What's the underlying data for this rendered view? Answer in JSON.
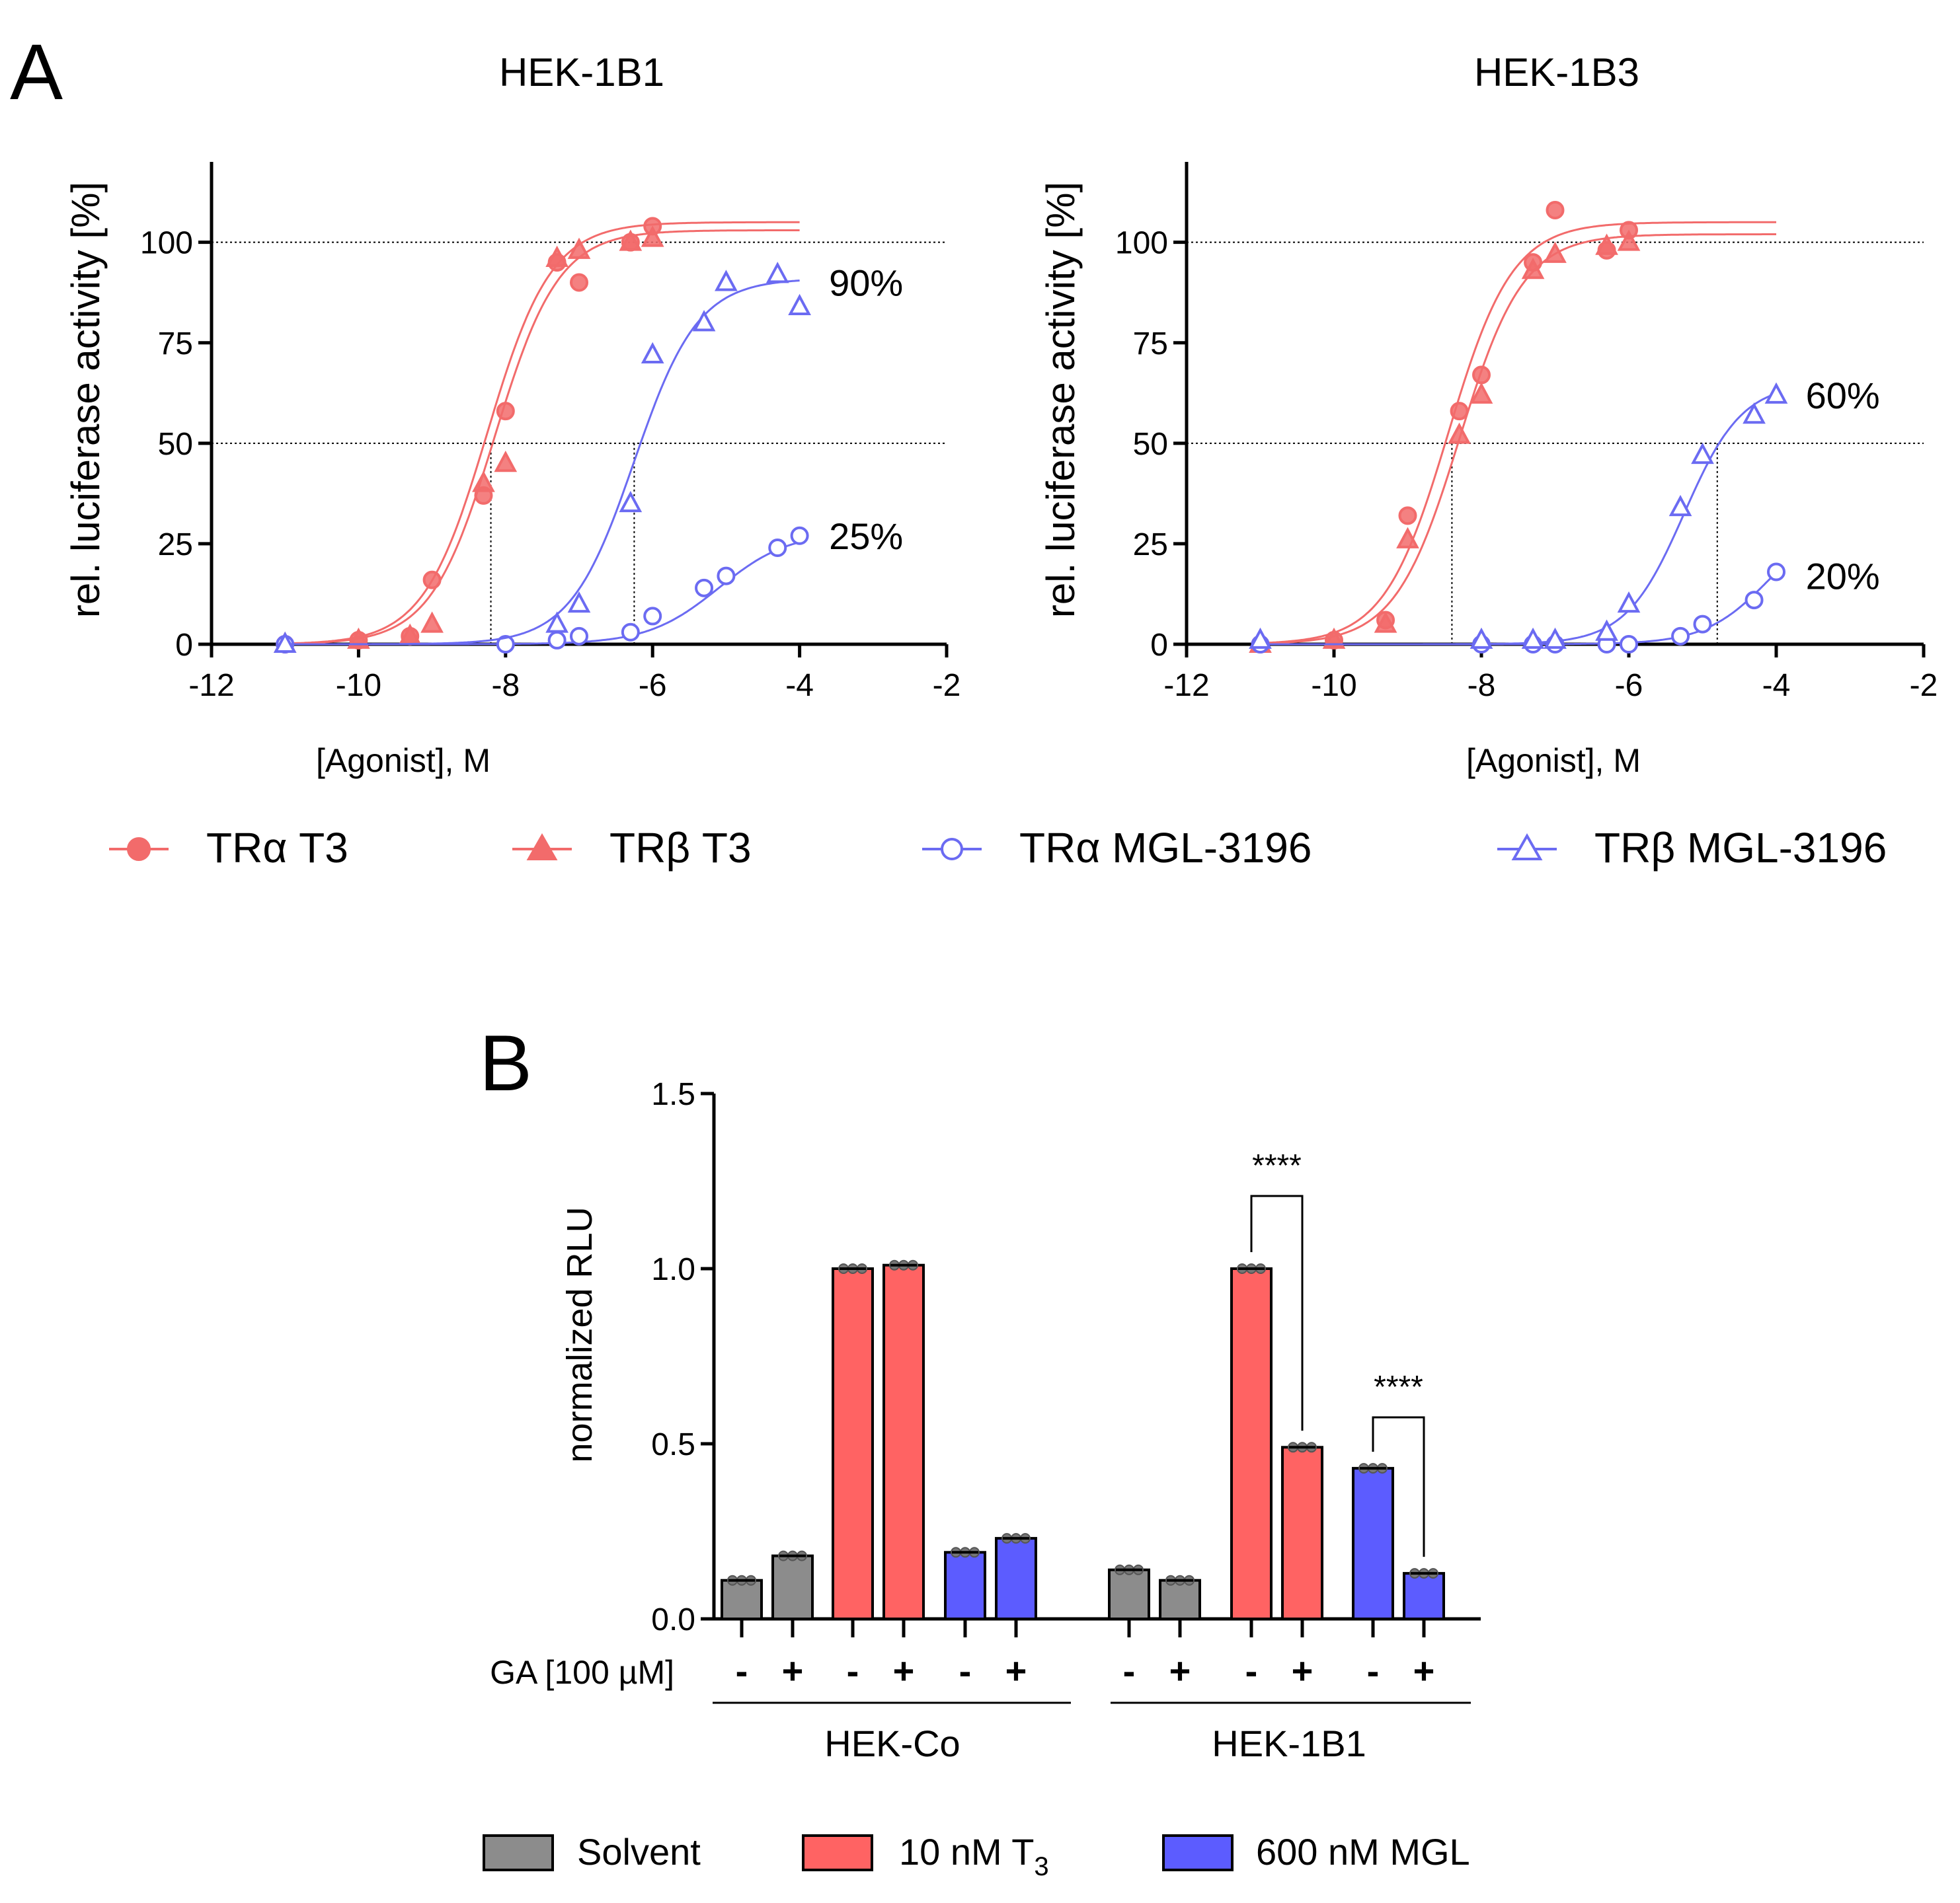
{
  "colors": {
    "t3": "#F26B6B",
    "mgl": "#6B6BF2",
    "solvent": "#8C8C8C",
    "red_bar": "#FF6363",
    "blue_bar": "#5C5CFF",
    "grid": "#000000"
  },
  "panel_a": {
    "letter": "A",
    "legend": [
      "TRα T3",
      "TRβ T3",
      "TRα MGL-3196",
      "TRβ MGL-3196"
    ]
  },
  "panel_b": {
    "letter": "B",
    "row_label": "GA [100 µM]",
    "minus": "-",
    "plus": "+",
    "group_labels": [
      "HEK-Co",
      "HEK-1B1"
    ],
    "legend": {
      "solvent": "Solvent",
      "t3_prefix": "10 nM T",
      "t3_sub": "3",
      "mgl": "600 nM MGL"
    }
  },
  "chart_data": [
    {
      "type": "line",
      "title": "HEK-1B1",
      "xlabel": "[Agonist], M",
      "ylabel": "rel. luciferase activity [%]",
      "xlim": [
        -12,
        -2
      ],
      "ylim": [
        0,
        120
      ],
      "xticks": [
        -12,
        -10,
        -8,
        -6,
        -4,
        -2
      ],
      "xtick_labels": [
        "-12",
        "-10",
        "-8",
        "-6",
        "-4",
        "-2"
      ],
      "yticks": [
        0,
        25,
        50,
        75,
        100
      ],
      "ytick_labels": [
        "0",
        "25",
        "50",
        "75",
        "100"
      ],
      "reference_lines_y": [
        50,
        100
      ],
      "ec50_markers": [
        {
          "x": -8.2,
          "y": 50
        },
        {
          "x": -6.25,
          "y": 50
        }
      ],
      "annotations": [
        {
          "text": "90%",
          "x": -3.6,
          "y": 90
        },
        {
          "text": "25%",
          "x": -3.6,
          "y": 27
        }
      ],
      "series": [
        {
          "name": "TRα T3",
          "color_key": "t3",
          "marker": "circle-filled",
          "top": 105,
          "logec50": -8.25,
          "hill": 1.0,
          "x": [
            -11,
            -10,
            -9.3,
            -9,
            -8.3,
            -8,
            -7.3,
            -7,
            -6.3,
            -6
          ],
          "y": [
            0,
            1,
            2,
            16,
            37,
            58,
            95,
            90,
            100,
            104
          ]
        },
        {
          "name": "TRβ T3",
          "color_key": "t3",
          "marker": "triangle-filled",
          "top": 103,
          "logec50": -8.15,
          "hill": 1.0,
          "x": [
            -11,
            -10,
            -9.3,
            -9,
            -8.3,
            -8,
            -7.3,
            -7,
            -6.3,
            -6
          ],
          "y": [
            0,
            1,
            2,
            5,
            40,
            45,
            96,
            98,
            100,
            101
          ]
        },
        {
          "name": "TRα MGL-3196",
          "color_key": "mgl",
          "marker": "circle-open",
          "top": 28,
          "logec50": -5.1,
          "hill": 0.9,
          "x": [
            -11,
            -8,
            -7.3,
            -7,
            -6.3,
            -6,
            -5.3,
            -5,
            -4.3,
            -4
          ],
          "y": [
            0,
            0,
            1,
            2,
            3,
            7,
            14,
            17,
            24,
            27
          ]
        },
        {
          "name": "TRβ MGL-3196",
          "color_key": "mgl",
          "marker": "triangle-open",
          "top": 91,
          "logec50": -6.25,
          "hill": 1.0,
          "x": [
            -11,
            -7.3,
            -7,
            -6.3,
            -6,
            -5.3,
            -5,
            -4.3,
            -4
          ],
          "y": [
            0,
            5,
            10,
            35,
            72,
            80,
            90,
            92,
            84
          ]
        }
      ]
    },
    {
      "type": "line",
      "title": "HEK-1B3",
      "xlabel": "[Agonist], M",
      "ylabel": "rel. luciferase activity [%]",
      "xlim": [
        -12,
        -2
      ],
      "ylim": [
        0,
        120
      ],
      "xticks": [
        -12,
        -10,
        -8,
        -6,
        -4,
        -2
      ],
      "xtick_labels": [
        "-12",
        "-10",
        "-8",
        "-6",
        "-4",
        "-2"
      ],
      "yticks": [
        0,
        25,
        50,
        75,
        100
      ],
      "ytick_labels": [
        "0",
        "25",
        "50",
        "75",
        "100"
      ],
      "reference_lines_y": [
        50,
        100
      ],
      "ec50_markers": [
        {
          "x": -8.4,
          "y": 50
        },
        {
          "x": -4.8,
          "y": 50
        }
      ],
      "annotations": [
        {
          "text": "60%",
          "x": -3.6,
          "y": 62
        },
        {
          "text": "20%",
          "x": -3.6,
          "y": 17
        }
      ],
      "series": [
        {
          "name": "TRα T3",
          "color_key": "t3",
          "marker": "circle-filled",
          "top": 105,
          "logec50": -8.45,
          "hill": 1.0,
          "x": [
            -11,
            -10,
            -9.3,
            -9,
            -8.3,
            -8,
            -7.3,
            -7,
            -6.3,
            -6
          ],
          "y": [
            0,
            1,
            6,
            32,
            58,
            67,
            95,
            108,
            98,
            103
          ]
        },
        {
          "name": "TRβ T3",
          "color_key": "t3",
          "marker": "triangle-filled",
          "top": 102,
          "logec50": -8.3,
          "hill": 1.0,
          "x": [
            -11,
            -10,
            -9.3,
            -9,
            -8.3,
            -8,
            -7.3,
            -7,
            -6.3,
            -6
          ],
          "y": [
            0,
            1,
            5,
            26,
            52,
            62,
            93,
            97,
            99,
            100
          ]
        },
        {
          "name": "TRα MGL-3196",
          "color_key": "mgl",
          "marker": "circle-open",
          "top": 32,
          "logec50": -4.1,
          "hill": 1.0,
          "x": [
            -11,
            -8,
            -7.3,
            -7,
            -6.3,
            -6,
            -5.3,
            -5,
            -4.3,
            -4
          ],
          "y": [
            0,
            0,
            0,
            0,
            0,
            0,
            2,
            5,
            11,
            18
          ]
        },
        {
          "name": "TRβ MGL-3196",
          "color_key": "mgl",
          "marker": "triangle-open",
          "top": 65,
          "logec50": -5.25,
          "hill": 1.1,
          "x": [
            -11,
            -8,
            -7.3,
            -7,
            -6.3,
            -6,
            -5.3,
            -5,
            -4.3,
            -4
          ],
          "y": [
            1,
            1,
            1,
            1,
            3,
            10,
            34,
            47,
            57,
            62
          ]
        }
      ]
    },
    {
      "type": "bar",
      "ylabel": "normalized RLU",
      "ylim": [
        0,
        1.5
      ],
      "yticks": [
        0,
        0.5,
        1.0,
        1.5
      ],
      "ytick_labels": [
        "0.0",
        "0.5",
        "1.0",
        "1.5"
      ],
      "categories": [
        "HEK-Co Solvent -",
        "HEK-Co Solvent +",
        "HEK-Co 10 nM T3 -",
        "HEK-Co 10 nM T3 +",
        "HEK-Co 600 nM MGL -",
        "HEK-Co 600 nM MGL +",
        "HEK-1B1 Solvent -",
        "HEK-1B1 Solvent +",
        "HEK-1B1 10 nM T3 -",
        "HEK-1B1 10 nM T3 +",
        "HEK-1B1 600 nM MGL -",
        "HEK-1B1 600 nM MGL +"
      ],
      "values": [
        0.11,
        0.18,
        1.0,
        1.01,
        0.19,
        0.23,
        0.14,
        0.11,
        1.0,
        0.49,
        0.43,
        0.13
      ],
      "treatment": [
        "solvent",
        "solvent",
        "t3",
        "t3",
        "mgl",
        "mgl",
        "solvent",
        "solvent",
        "t3",
        "t3",
        "mgl",
        "mgl"
      ],
      "ga": [
        "-",
        "+",
        "-",
        "+",
        "-",
        "+",
        "-",
        "+",
        "-",
        "+",
        "-",
        "+"
      ],
      "significance": [
        {
          "from": 8,
          "to": 9,
          "label": "****"
        },
        {
          "from": 10,
          "to": 11,
          "label": "****"
        }
      ],
      "legend": [
        "Solvent",
        "10 nM T3",
        "600 nM MGL"
      ]
    }
  ]
}
